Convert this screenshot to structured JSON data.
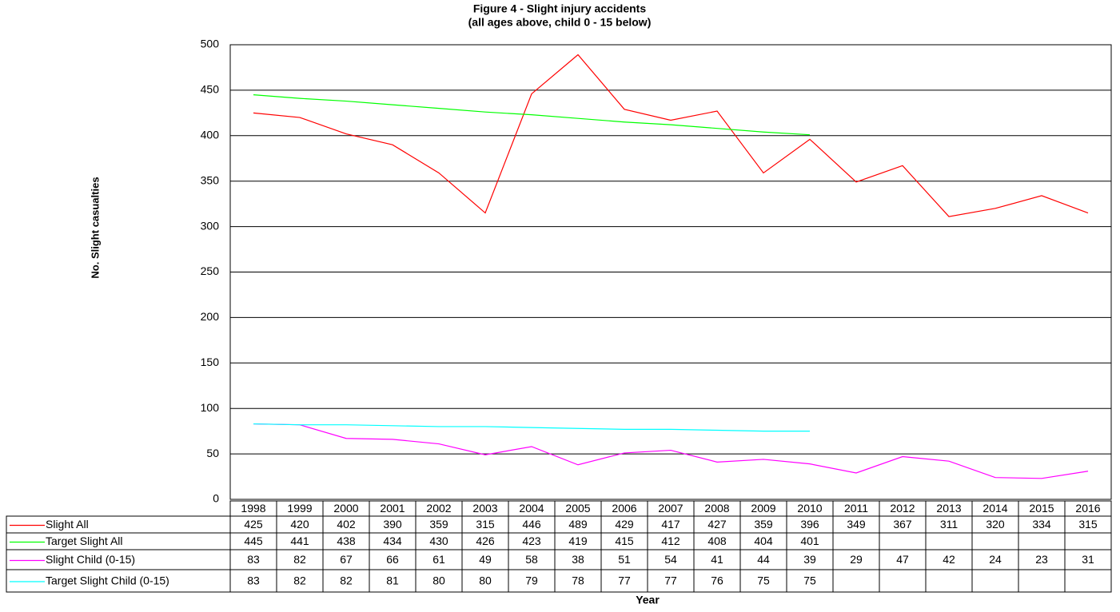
{
  "chart_data": {
    "type": "line",
    "title": "Figure 4 - Slight injury accidents",
    "subtitle": "(all ages above, child 0 - 15 below)",
    "y_label": "No. Slight casualties",
    "x_label": "Year",
    "categories": [
      "1998",
      "1999",
      "2000",
      "2001",
      "2002",
      "2003",
      "2004",
      "2005",
      "2006",
      "2007",
      "2008",
      "2009",
      "2010",
      "2011",
      "2012",
      "2013",
      "2014",
      "2015",
      "2016"
    ],
    "series": [
      {
        "name": "Slight All",
        "color": "#ff0000",
        "values": [
          425,
          420,
          402,
          390,
          359,
          315,
          446,
          489,
          429,
          417,
          427,
          359,
          396,
          349,
          367,
          311,
          320,
          334,
          315
        ]
      },
      {
        "name": "Target Slight All",
        "color": "#00ff00",
        "values": [
          445,
          441,
          438,
          434,
          430,
          426,
          423,
          419,
          415,
          412,
          408,
          404,
          401,
          null,
          null,
          null,
          null,
          null,
          null
        ]
      },
      {
        "name": "Slight Child (0-15)",
        "color": "#ff00ff",
        "values": [
          83,
          82,
          67,
          66,
          61,
          49,
          58,
          38,
          51,
          54,
          41,
          44,
          39,
          29,
          47,
          42,
          24,
          23,
          31
        ]
      },
      {
        "name": "Target Slight Child (0-15)",
        "color": "#00ffff",
        "values": [
          83,
          82,
          82,
          81,
          80,
          80,
          79,
          78,
          77,
          77,
          76,
          75,
          75,
          null,
          null,
          null,
          null,
          null,
          null
        ]
      }
    ],
    "ylim": [
      0,
      500
    ],
    "yticks": [
      0,
      50,
      100,
      150,
      200,
      250,
      300,
      350,
      400,
      450,
      500
    ],
    "grid": true,
    "data_table": true
  }
}
